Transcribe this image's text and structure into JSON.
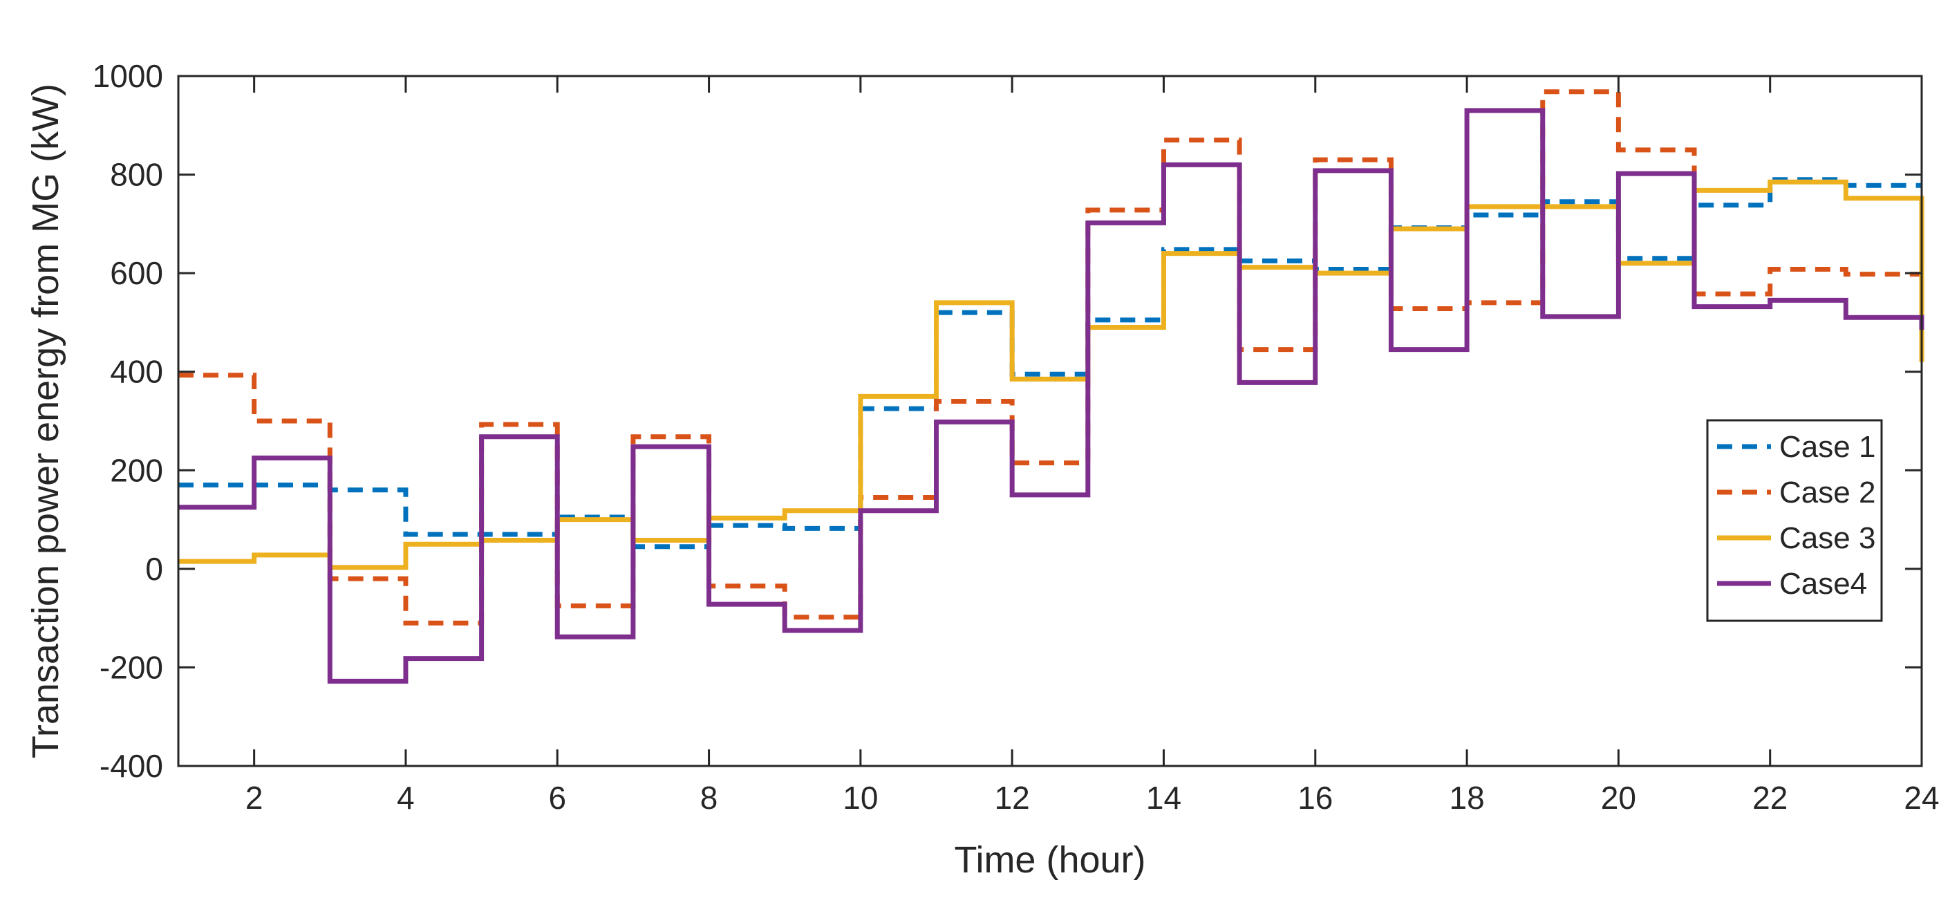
{
  "chart_data": {
    "type": "line",
    "step": true,
    "title": "",
    "xlabel": "Time (hour)",
    "ylabel": "Transaction  power energy from MG (kW)",
    "xlim": [
      1,
      24
    ],
    "ylim": [
      -400,
      1000
    ],
    "xticks": [
      2,
      4,
      6,
      8,
      10,
      12,
      14,
      16,
      18,
      20,
      22,
      24
    ],
    "yticks": [
      -400,
      -200,
      0,
      200,
      400,
      600,
      800,
      1000
    ],
    "grid": false,
    "legend_position": "right",
    "x": [
      1,
      2,
      3,
      4,
      5,
      6,
      7,
      8,
      9,
      10,
      11,
      12,
      13,
      14,
      15,
      16,
      17,
      18,
      19,
      20,
      21,
      22,
      23
    ],
    "series": [
      {
        "name": "Case 1",
        "color": "#0072BD",
        "dash": "dashed",
        "values": [
          170,
          170,
          160,
          70,
          70,
          105,
          45,
          88,
          82,
          325,
          520,
          395,
          505,
          648,
          625,
          608,
          692,
          718,
          745,
          630,
          738,
          790,
          778
        ]
      },
      {
        "name": "Case 2",
        "color": "#D95319",
        "dash": "dashed",
        "values": [
          393,
          300,
          -20,
          -110,
          293,
          -75,
          268,
          -35,
          -98,
          145,
          340,
          215,
          728,
          870,
          445,
          830,
          528,
          540,
          968,
          850,
          558,
          608,
          598
        ]
      },
      {
        "name": "Case 3",
        "color": "#EDB120",
        "dash": "solid",
        "values": [
          15,
          28,
          3,
          50,
          58,
          100,
          58,
          103,
          118,
          350,
          540,
          385,
          490,
          640,
          612,
          600,
          690,
          735,
          735,
          620,
          768,
          785,
          752
        ]
      },
      {
        "name": "Case4",
        "color": "#7E2F8E",
        "dash": "solid",
        "values": [
          125,
          225,
          -228,
          -182,
          268,
          -138,
          248,
          -72,
          -125,
          118,
          298,
          150,
          702,
          820,
          378,
          808,
          445,
          930,
          512,
          802,
          532,
          545,
          510
        ]
      }
    ],
    "end_values": [
      {
        "series": "Case 3",
        "value": 420
      },
      {
        "series": "Case4",
        "value": 485
      }
    ]
  }
}
